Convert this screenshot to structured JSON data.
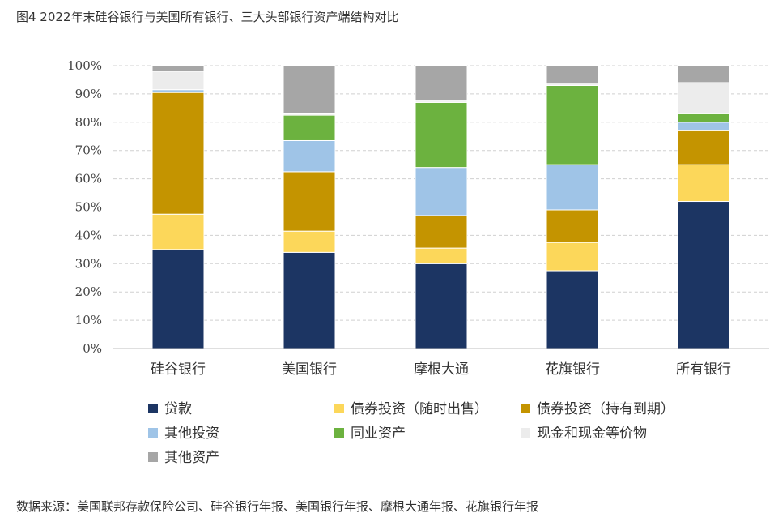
{
  "figure": {
    "title": "图4 2022年末硅谷银行与美国所有银行、三大头部银行资产端结构对比",
    "source": "数据来源：美国联邦存款保险公司、硅谷银行年报、美国银行年报、摩根大通年报、花旗银行年报"
  },
  "chart_data": {
    "type": "bar",
    "stacked": true,
    "normalized_percent": true,
    "title": "",
    "xlabel": "",
    "ylabel": "",
    "ylim": [
      0,
      100
    ],
    "y_ticks": [
      "0%",
      "10%",
      "20%",
      "30%",
      "40%",
      "50%",
      "60%",
      "70%",
      "80%",
      "90%",
      "100%"
    ],
    "grid": "horizontal-dashed",
    "legend_position": "bottom",
    "categories": [
      "硅谷银行",
      "美国银行",
      "摩根大通",
      "花旗银行",
      "所有银行"
    ],
    "series": [
      {
        "name": "贷款",
        "color": "#1c3563",
        "values": [
          35,
          34,
          30,
          27.5,
          52
        ]
      },
      {
        "name": "债券投资（随时出售）",
        "color": "#fcd75a",
        "values": [
          12.5,
          7.5,
          5.5,
          10,
          13
        ]
      },
      {
        "name": "债券投资（持有到期）",
        "color": "#c49400",
        "values": [
          43,
          21,
          11.5,
          11.5,
          12
        ]
      },
      {
        "name": "其他投资",
        "color": "#9fc4e7",
        "values": [
          1,
          11,
          17,
          16,
          3
        ]
      },
      {
        "name": "同业资产",
        "color": "#6cb23f",
        "values": [
          0,
          9,
          23,
          28,
          3
        ]
      },
      {
        "name": "现金和现金等价物",
        "color": "#ececec",
        "values": [
          6.5,
          0.5,
          0.5,
          0.5,
          11
        ]
      },
      {
        "name": "其他资产",
        "color": "#a6a6a6",
        "values": [
          2,
          17,
          12.5,
          6.5,
          6
        ]
      }
    ]
  }
}
